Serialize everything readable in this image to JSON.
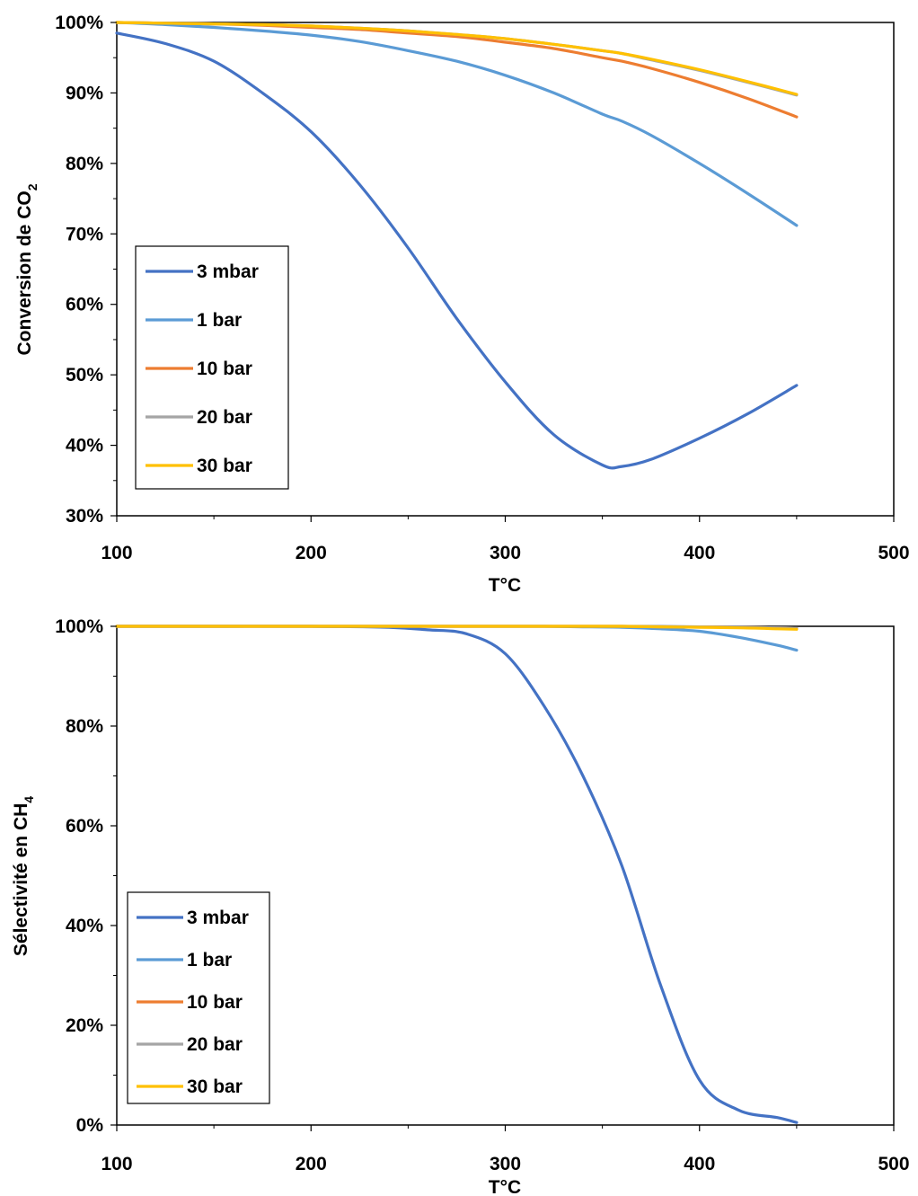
{
  "charts": [
    {
      "ylabel_main": "Conversion de CO",
      "ylabel_sub": "2",
      "xlabel": "T°C"
    },
    {
      "ylabel_main": "Sélectivité en CH",
      "ylabel_sub": "4",
      "xlabel": "T°C"
    }
  ],
  "chart_data": [
    {
      "type": "line",
      "title": "",
      "xlabel": "T°C",
      "ylabel": "Conversion de CO2",
      "xlim": [
        100,
        500
      ],
      "ylim": [
        0.3,
        1.0
      ],
      "xticks": [
        "100",
        "200",
        "300",
        "400",
        "500"
      ],
      "yticks": [
        "30%",
        "40%",
        "50%",
        "60%",
        "70%",
        "80%",
        "90%",
        "100%"
      ],
      "grid": false,
      "legend_position": "left",
      "x": [
        100,
        125,
        150,
        175,
        200,
        225,
        250,
        275,
        300,
        325,
        350,
        360,
        375,
        400,
        425,
        450
      ],
      "series": [
        {
          "name": "3 mbar",
          "color": "#4472C4",
          "values": [
            0.985,
            0.97,
            0.945,
            0.9,
            0.845,
            0.77,
            0.68,
            0.58,
            0.49,
            0.415,
            0.372,
            0.37,
            0.38,
            0.41,
            0.445,
            0.485
          ]
        },
        {
          "name": "1 bar",
          "color": "#5B9BD5",
          "values": [
            1.0,
            0.997,
            0.993,
            0.988,
            0.982,
            0.973,
            0.96,
            0.945,
            0.925,
            0.9,
            0.87,
            0.86,
            0.84,
            0.8,
            0.757,
            0.712
          ]
        },
        {
          "name": "10 bar",
          "color": "#ED7D31",
          "values": [
            1.0,
            0.999,
            0.998,
            0.996,
            0.993,
            0.99,
            0.985,
            0.98,
            0.972,
            0.963,
            0.95,
            0.945,
            0.935,
            0.915,
            0.892,
            0.866
          ]
        },
        {
          "name": "20 bar",
          "color": "#A5A5A5",
          "values": [
            1.0,
            0.999,
            0.998,
            0.997,
            0.995,
            0.992,
            0.988,
            0.983,
            0.977,
            0.969,
            0.96,
            0.956,
            0.947,
            0.932,
            0.915,
            0.897
          ]
        },
        {
          "name": "30 bar",
          "color": "#FFC000",
          "values": [
            1.0,
            0.999,
            0.998,
            0.997,
            0.995,
            0.992,
            0.988,
            0.983,
            0.977,
            0.969,
            0.96,
            0.956,
            0.948,
            0.933,
            0.916,
            0.898
          ]
        }
      ]
    },
    {
      "type": "line",
      "title": "",
      "xlabel": "T°C",
      "ylabel": "Sélectivité en CH4",
      "xlim": [
        100,
        500
      ],
      "ylim": [
        0.0,
        1.0
      ],
      "xticks": [
        "100",
        "200",
        "300",
        "400",
        "500"
      ],
      "yticks": [
        "0%",
        "20%",
        "40%",
        "60%",
        "80%",
        "100%"
      ],
      "grid": false,
      "legend_position": "left",
      "x": [
        100,
        150,
        200,
        240,
        260,
        280,
        300,
        320,
        340,
        360,
        380,
        400,
        420,
        440,
        450
      ],
      "series": [
        {
          "name": "3 mbar",
          "color": "#4472C4",
          "values": [
            1.0,
            1.0,
            1.0,
            0.998,
            0.993,
            0.985,
            0.945,
            0.84,
            0.7,
            0.52,
            0.28,
            0.09,
            0.03,
            0.015,
            0.005
          ]
        },
        {
          "name": "1 bar",
          "color": "#5B9BD5",
          "values": [
            1.0,
            1.0,
            1.0,
            1.0,
            1.0,
            1.0,
            1.0,
            1.0,
            0.999,
            0.998,
            0.995,
            0.99,
            0.978,
            0.962,
            0.952
          ]
        },
        {
          "name": "10 bar",
          "color": "#ED7D31",
          "values": [
            1.0,
            1.0,
            1.0,
            1.0,
            1.0,
            1.0,
            1.0,
            1.0,
            1.0,
            1.0,
            0.999,
            0.999,
            0.998,
            0.997,
            0.996
          ]
        },
        {
          "name": "20 bar",
          "color": "#A5A5A5",
          "values": [
            1.0,
            1.0,
            1.0,
            1.0,
            1.0,
            1.0,
            1.0,
            1.0,
            1.0,
            1.0,
            1.0,
            0.999,
            0.998,
            0.997,
            0.996
          ]
        },
        {
          "name": "30 bar",
          "color": "#FFC000",
          "values": [
            1.0,
            1.0,
            1.0,
            1.0,
            1.0,
            1.0,
            1.0,
            1.0,
            1.0,
            1.0,
            0.999,
            0.998,
            0.997,
            0.995,
            0.994
          ]
        }
      ]
    }
  ]
}
